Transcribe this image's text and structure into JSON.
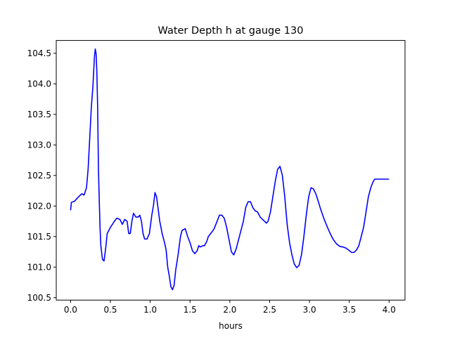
{
  "chart_data": {
    "type": "line",
    "title": "Water Depth h at gauge 130",
    "xlabel": "hours",
    "ylabel": "",
    "xlim": [
      -0.18,
      4.2
    ],
    "ylim": [
      100.46,
      104.71
    ],
    "grid": false,
    "legend": "none",
    "x_ticks": [
      0.0,
      0.5,
      1.0,
      1.5,
      2.0,
      2.5,
      3.0,
      3.5,
      4.0
    ],
    "x_tick_labels": [
      "0.0",
      "0.5",
      "1.0",
      "1.5",
      "2.0",
      "2.5",
      "3.0",
      "3.5",
      "4.0"
    ],
    "y_ticks": [
      100.5,
      101.0,
      101.5,
      102.0,
      102.5,
      103.0,
      103.5,
      104.0,
      104.5
    ],
    "y_tick_labels": [
      "100.5",
      "101.0",
      "101.5",
      "102.0",
      "102.5",
      "103.0",
      "103.5",
      "104.0",
      "104.5"
    ],
    "series": [
      {
        "color": "#0000ff",
        "points": [
          [
            0.0,
            101.93
          ],
          [
            0.01,
            102.06
          ],
          [
            0.05,
            102.08
          ],
          [
            0.1,
            102.15
          ],
          [
            0.14,
            102.2
          ],
          [
            0.17,
            102.18
          ],
          [
            0.2,
            102.3
          ],
          [
            0.22,
            102.6
          ],
          [
            0.24,
            103.1
          ],
          [
            0.26,
            103.6
          ],
          [
            0.28,
            103.95
          ],
          [
            0.3,
            104.45
          ],
          [
            0.31,
            104.57
          ],
          [
            0.32,
            104.5
          ],
          [
            0.33,
            104.2
          ],
          [
            0.34,
            103.6
          ],
          [
            0.35,
            102.6
          ],
          [
            0.36,
            102.1
          ],
          [
            0.37,
            101.65
          ],
          [
            0.38,
            101.35
          ],
          [
            0.4,
            101.13
          ],
          [
            0.42,
            101.1
          ],
          [
            0.44,
            101.3
          ],
          [
            0.46,
            101.55
          ],
          [
            0.5,
            101.65
          ],
          [
            0.55,
            101.75
          ],
          [
            0.58,
            101.8
          ],
          [
            0.62,
            101.78
          ],
          [
            0.65,
            101.7
          ],
          [
            0.68,
            101.78
          ],
          [
            0.71,
            101.75
          ],
          [
            0.73,
            101.55
          ],
          [
            0.75,
            101.55
          ],
          [
            0.77,
            101.75
          ],
          [
            0.79,
            101.88
          ],
          [
            0.82,
            101.82
          ],
          [
            0.85,
            101.82
          ],
          [
            0.87,
            101.85
          ],
          [
            0.89,
            101.75
          ],
          [
            0.91,
            101.55
          ],
          [
            0.93,
            101.46
          ],
          [
            0.96,
            101.46
          ],
          [
            0.99,
            101.55
          ],
          [
            1.02,
            101.85
          ],
          [
            1.04,
            102.0
          ],
          [
            1.06,
            102.22
          ],
          [
            1.08,
            102.15
          ],
          [
            1.1,
            101.95
          ],
          [
            1.12,
            101.75
          ],
          [
            1.15,
            101.55
          ],
          [
            1.18,
            101.4
          ],
          [
            1.2,
            101.28
          ],
          [
            1.22,
            101.0
          ],
          [
            1.24,
            100.85
          ],
          [
            1.26,
            100.68
          ],
          [
            1.28,
            100.63
          ],
          [
            1.3,
            100.7
          ],
          [
            1.32,
            100.95
          ],
          [
            1.35,
            101.2
          ],
          [
            1.38,
            101.5
          ],
          [
            1.4,
            101.6
          ],
          [
            1.44,
            101.63
          ],
          [
            1.47,
            101.5
          ],
          [
            1.5,
            101.4
          ],
          [
            1.53,
            101.27
          ],
          [
            1.56,
            101.22
          ],
          [
            1.59,
            101.27
          ],
          [
            1.61,
            101.35
          ],
          [
            1.63,
            101.33
          ],
          [
            1.66,
            101.35
          ],
          [
            1.68,
            101.35
          ],
          [
            1.71,
            101.42
          ],
          [
            1.73,
            101.5
          ],
          [
            1.76,
            101.55
          ],
          [
            1.8,
            101.62
          ],
          [
            1.84,
            101.75
          ],
          [
            1.87,
            101.85
          ],
          [
            1.9,
            101.85
          ],
          [
            1.93,
            101.8
          ],
          [
            1.96,
            101.65
          ],
          [
            1.99,
            101.45
          ],
          [
            2.02,
            101.25
          ],
          [
            2.05,
            101.2
          ],
          [
            2.08,
            101.3
          ],
          [
            2.11,
            101.45
          ],
          [
            2.14,
            101.6
          ],
          [
            2.17,
            101.75
          ],
          [
            2.2,
            101.98
          ],
          [
            2.23,
            102.07
          ],
          [
            2.26,
            102.07
          ],
          [
            2.29,
            101.97
          ],
          [
            2.32,
            101.92
          ],
          [
            2.35,
            101.9
          ],
          [
            2.38,
            101.82
          ],
          [
            2.42,
            101.77
          ],
          [
            2.46,
            101.72
          ],
          [
            2.48,
            101.75
          ],
          [
            2.51,
            101.9
          ],
          [
            2.54,
            102.15
          ],
          [
            2.57,
            102.4
          ],
          [
            2.6,
            102.6
          ],
          [
            2.63,
            102.65
          ],
          [
            2.66,
            102.5
          ],
          [
            2.69,
            102.15
          ],
          [
            2.72,
            101.7
          ],
          [
            2.75,
            101.4
          ],
          [
            2.78,
            101.2
          ],
          [
            2.81,
            101.05
          ],
          [
            2.84,
            100.99
          ],
          [
            2.87,
            101.03
          ],
          [
            2.9,
            101.2
          ],
          [
            2.93,
            101.5
          ],
          [
            2.96,
            101.85
          ],
          [
            2.99,
            102.15
          ],
          [
            3.02,
            102.3
          ],
          [
            3.05,
            102.28
          ],
          [
            3.08,
            102.2
          ],
          [
            3.11,
            102.08
          ],
          [
            3.14,
            101.95
          ],
          [
            3.18,
            101.8
          ],
          [
            3.22,
            101.67
          ],
          [
            3.26,
            101.55
          ],
          [
            3.3,
            101.45
          ],
          [
            3.34,
            101.38
          ],
          [
            3.38,
            101.34
          ],
          [
            3.42,
            101.33
          ],
          [
            3.46,
            101.31
          ],
          [
            3.5,
            101.27
          ],
          [
            3.53,
            101.24
          ],
          [
            3.56,
            101.24
          ],
          [
            3.59,
            101.28
          ],
          [
            3.62,
            101.35
          ],
          [
            3.65,
            101.5
          ],
          [
            3.68,
            101.65
          ],
          [
            3.71,
            101.9
          ],
          [
            3.74,
            102.15
          ],
          [
            3.77,
            102.3
          ],
          [
            3.8,
            102.4
          ],
          [
            3.82,
            102.44
          ],
          [
            4.0,
            102.44
          ]
        ]
      }
    ]
  }
}
